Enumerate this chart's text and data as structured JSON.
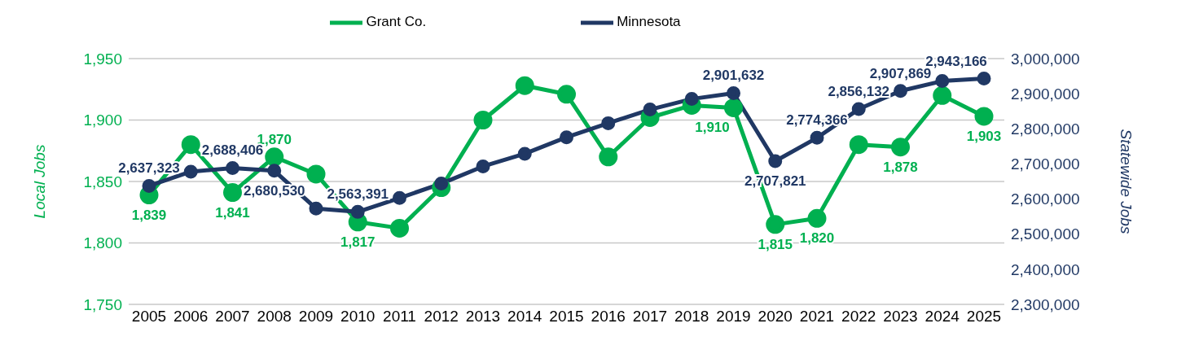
{
  "chart_data": {
    "type": "line",
    "ylabel": "Local Jobs",
    "y2label": "Statewide Jobs",
    "categories": [
      "2005",
      "2006",
      "2007",
      "2008",
      "2009",
      "2010",
      "2011",
      "2012",
      "2013",
      "2014",
      "2015",
      "2016",
      "2017",
      "2018",
      "2019",
      "2020",
      "2021",
      "2022",
      "2023",
      "2024",
      "2025"
    ],
    "series": [
      {
        "name": "Grant Co.",
        "color": "#00b050",
        "values": [
          1839,
          1880,
          1841,
          1870,
          1856,
          1817,
          1812,
          1845,
          1900,
          1928,
          1921,
          1870,
          1902,
          1912,
          1910,
          1815,
          1820,
          1880,
          1878,
          1920,
          1903
        ],
        "value_labels": [
          "1,839",
          null,
          "1,841",
          "1,870",
          null,
          "1,817",
          null,
          null,
          null,
          null,
          null,
          null,
          null,
          null,
          "1,910",
          "1,815",
          "1,820",
          null,
          "1,878",
          null,
          "1,903"
        ]
      },
      {
        "name": "Minnesota",
        "color": "#203864",
        "axis": "y2",
        "values": [
          2637323,
          2678000,
          2688406,
          2680530,
          2573000,
          2563391,
          2603000,
          2644000,
          2693000,
          2729000,
          2776000,
          2816000,
          2855000,
          2885000,
          2901632,
          2707821,
          2774366,
          2856132,
          2907869,
          2936000,
          2943166
        ],
        "value_labels": [
          "2,637,323",
          null,
          "2,688,406",
          "2,680,530",
          null,
          "2,563,391",
          null,
          null,
          null,
          null,
          null,
          null,
          null,
          null,
          "2,901,632",
          "2,707,821",
          "2,774,366",
          "2,856,132",
          "2,907,869",
          null,
          "2,943,166"
        ]
      }
    ],
    "ylim": [
      1750,
      1950
    ],
    "yticks": [
      {
        "value": 1750,
        "label": "1,750"
      },
      {
        "value": 1800,
        "label": "1,800"
      },
      {
        "value": 1850,
        "label": "1,850"
      },
      {
        "value": 1900,
        "label": "1,900"
      },
      {
        "value": 1950,
        "label": "1,950"
      }
    ],
    "y2lim": [
      2300000,
      3000000
    ],
    "y2ticks": [
      {
        "value": 2300000,
        "label": "2,300,000"
      },
      {
        "value": 2400000,
        "label": "2,400,000"
      },
      {
        "value": 2500000,
        "label": "2,500,000"
      },
      {
        "value": 2600000,
        "label": "2,600,000"
      },
      {
        "value": 2700000,
        "label": "2,700,000"
      },
      {
        "value": 2800000,
        "label": "2,800,000"
      },
      {
        "value": 2900000,
        "label": "2,900,000"
      },
      {
        "value": 3000000,
        "label": "3,000,000"
      }
    ],
    "grid": "y",
    "legend": "top",
    "marker": "circle",
    "line_style": "solid"
  }
}
